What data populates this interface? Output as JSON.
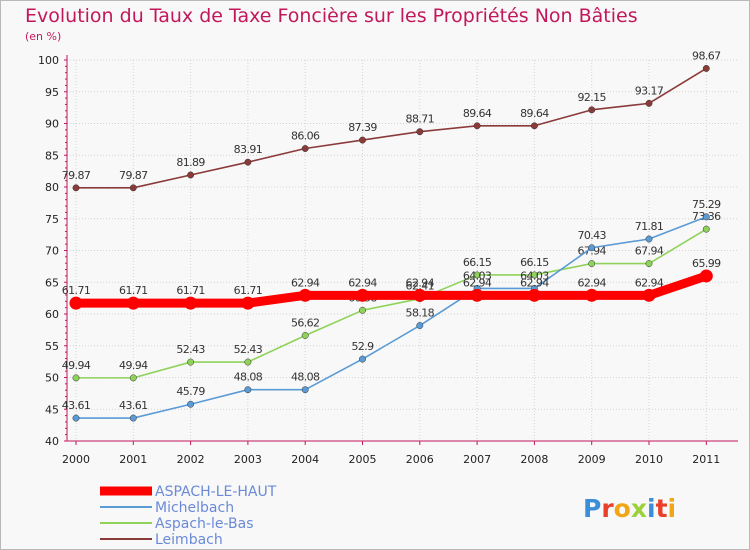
{
  "chart_data": {
    "type": "line",
    "title": "Evolution du Taux de Taxe Foncière sur les Propriétés Non Bâties",
    "subtitle": "(en %)",
    "x": [
      "2000",
      "2001",
      "2002",
      "2003",
      "2004",
      "2005",
      "2006",
      "2007",
      "2008",
      "2009",
      "2010",
      "2011"
    ],
    "ylim": [
      40,
      100
    ],
    "yticks": [
      "40",
      "45",
      "50",
      "55",
      "60",
      "65",
      "70",
      "75",
      "80",
      "85",
      "90",
      "95",
      "100"
    ],
    "grid": true,
    "legend_position": "bottom-left",
    "series": [
      {
        "name": "ASPACH-LE-HAUT",
        "color": "#ff0000",
        "values": [
          61.71,
          61.71,
          61.71,
          61.71,
          62.94,
          62.94,
          62.94,
          62.94,
          62.94,
          62.94,
          62.94,
          65.99
        ],
        "labels": [
          "61.71",
          "61.71",
          "61.71",
          "61.71",
          "62.94",
          "62.94",
          "62.94",
          "62.94",
          "62.94",
          "62.94",
          "62.94",
          "65.99"
        ]
      },
      {
        "name": "Michelbach",
        "color": "#5b9bd5",
        "values": [
          43.61,
          43.61,
          45.79,
          48.08,
          48.08,
          52.9,
          58.18,
          64.03,
          64.03,
          70.43,
          71.81,
          75.29
        ],
        "labels": [
          "43.61",
          "43.61",
          "45.79",
          "48.08",
          "48.08",
          "52.9",
          "58.18",
          "64.03",
          "64.03",
          "70.43",
          "71.81",
          "75.29"
        ]
      },
      {
        "name": "Aspach-le-Bas",
        "color": "#8fd25a",
        "values": [
          49.94,
          49.94,
          52.43,
          52.43,
          56.62,
          60.58,
          62.41,
          66.15,
          66.15,
          67.94,
          67.94,
          73.36
        ],
        "labels": [
          "49.94",
          "49.94",
          "52.43",
          "52.43",
          "56.62",
          "60.58",
          "62.41",
          "66.15",
          "66.15",
          "67.94",
          "67.94",
          "73.36"
        ]
      },
      {
        "name": "Leimbach",
        "color": "#8b3a3a",
        "values": [
          79.87,
          79.87,
          81.89,
          83.91,
          86.06,
          87.39,
          88.71,
          89.64,
          89.64,
          92.15,
          93.17,
          98.67
        ],
        "labels": [
          "79.87",
          "79.87",
          "81.89",
          "83.91",
          "86.06",
          "87.39",
          "88.71",
          "89.64",
          "89.64",
          "92.15",
          "93.17",
          "98.67"
        ]
      }
    ]
  },
  "logo": {
    "text": "Proxiti",
    "letter_colors": [
      "#3a8fd8",
      "#e8402a",
      "#f2a516",
      "#9bd23a",
      "#3a8fd8",
      "#e8402a",
      "#f2a516"
    ]
  }
}
